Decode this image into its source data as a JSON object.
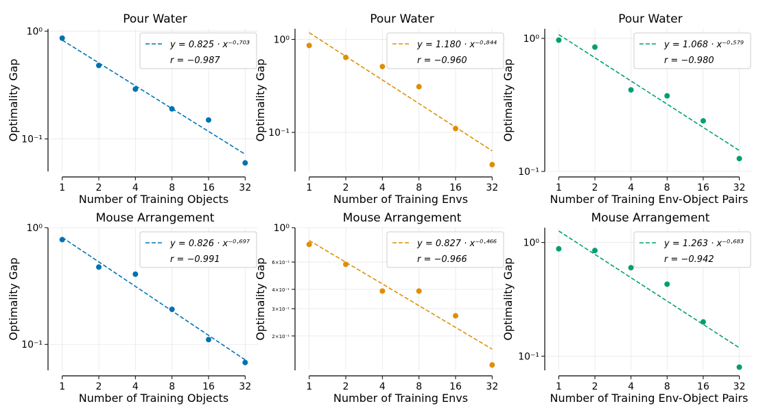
{
  "chart_data": [
    {
      "type": "scatter",
      "title": "Pour Water",
      "xlabel": "Number of Training Objects",
      "ylabel": "Optimality Gap",
      "x": [
        1,
        2,
        4,
        8,
        16,
        32
      ],
      "x_tick_labels": [
        "1",
        "2",
        "4",
        "8",
        "16",
        "32"
      ],
      "y": [
        0.86,
        0.48,
        0.29,
        0.19,
        0.15,
        0.06
      ],
      "y_scale": "log",
      "ylim": [
        0.05,
        1.05
      ],
      "y_ticks": [
        {
          "value": 1.0,
          "label": "10⁰"
        },
        {
          "value": 0.1,
          "label": "10⁻¹"
        }
      ],
      "fit": {
        "a": 0.825,
        "b": -0.703,
        "eq_label": "y = 0.825 · x⁻⁰·⁷⁰³",
        "r_label": "r = −0.987"
      },
      "color": "#0072b2",
      "legend": "top-right",
      "grid": true
    },
    {
      "type": "scatter",
      "title": "Pour Water",
      "xlabel": "Number of Training Envs",
      "ylabel": "Optimality Gap",
      "x": [
        1,
        2,
        4,
        8,
        16,
        32
      ],
      "x_tick_labels": [
        "1",
        "2",
        "4",
        "8",
        "16",
        "32"
      ],
      "y": [
        0.86,
        0.64,
        0.51,
        0.31,
        0.11,
        0.045
      ],
      "y_scale": "log",
      "ylim": [
        0.038,
        1.3
      ],
      "y_ticks": [
        {
          "value": 1.0,
          "label": "10⁰"
        },
        {
          "value": 0.1,
          "label": "10⁻¹"
        }
      ],
      "fit": {
        "a": 1.18,
        "b": -0.844,
        "eq_label": "y = 1.180 · x⁻⁰·⁸⁴⁴",
        "r_label": "r = −0.960"
      },
      "color": "#de8f05",
      "legend": "top-right",
      "grid": true
    },
    {
      "type": "scatter",
      "title": "Pour Water",
      "xlabel": "Number of Training Env-Object Pairs",
      "ylabel": "Optimality Gap",
      "x": [
        1,
        2,
        4,
        8,
        16,
        32
      ],
      "x_tick_labels": [
        "1",
        "2",
        "4",
        "8",
        "16",
        "32"
      ],
      "y": [
        0.97,
        0.86,
        0.41,
        0.37,
        0.24,
        0.125
      ],
      "y_scale": "log",
      "ylim": [
        0.1,
        1.18
      ],
      "y_ticks": [
        {
          "value": 1.0,
          "label": "10⁰"
        },
        {
          "value": 0.1,
          "label": "10⁻¹"
        }
      ],
      "fit": {
        "a": 1.068,
        "b": -0.579,
        "eq_label": "y = 1.068 · x⁻⁰·⁵⁷⁹",
        "r_label": "r = −0.980"
      },
      "color": "#029e73",
      "legend": "top-right",
      "grid": true
    },
    {
      "type": "scatter",
      "title": "Mouse Arrangement",
      "xlabel": "Number of Training Objects",
      "ylabel": "Optimality Gap",
      "x": [
        1,
        2,
        4,
        8,
        16,
        32
      ],
      "x_tick_labels": [
        "1",
        "2",
        "4",
        "8",
        "16",
        "32"
      ],
      "y": [
        0.79,
        0.46,
        0.4,
        0.2,
        0.11,
        0.07
      ],
      "y_scale": "log",
      "ylim": [
        0.06,
        1.0
      ],
      "y_ticks": [
        {
          "value": 1.0,
          "label": "10⁰"
        },
        {
          "value": 0.1,
          "label": "10⁻¹"
        }
      ],
      "fit": {
        "a": 0.826,
        "b": -0.697,
        "eq_label": "y = 0.826 · x⁻⁰·⁶⁹⁷",
        "r_label": "r = −0.991"
      },
      "color": "#0072b2",
      "legend": "top-right",
      "grid": true
    },
    {
      "type": "scatter",
      "title": "Mouse Arrangement",
      "xlabel": "Number of Training Envs",
      "ylabel": "Optimality Gap",
      "x": [
        1,
        2,
        4,
        8,
        16,
        32
      ],
      "x_tick_labels": [
        "1",
        "2",
        "4",
        "8",
        "16",
        "32"
      ],
      "y": [
        0.78,
        0.58,
        0.39,
        0.39,
        0.27,
        0.13
      ],
      "y_scale": "log",
      "ylim": [
        0.12,
        1.0
      ],
      "y_ticks": [
        {
          "value": 1.0,
          "label": "10⁰"
        },
        {
          "value": 0.6,
          "label": "6×10⁻¹"
        },
        {
          "value": 0.4,
          "label": "4×10⁻¹"
        },
        {
          "value": 0.3,
          "label": "3×10⁻¹"
        },
        {
          "value": 0.2,
          "label": "2×10⁻¹"
        }
      ],
      "fit": {
        "a": 0.827,
        "b": -0.466,
        "eq_label": "y = 0.827 · x⁻⁰·⁴⁶⁶",
        "r_label": "r = −0.966"
      },
      "color": "#de8f05",
      "legend": "top-right",
      "grid": true
    },
    {
      "type": "scatter",
      "title": "Mouse Arrangement",
      "xlabel": "Number of Training Env-Object Pairs",
      "ylabel": "Optimality Gap",
      "x": [
        1,
        2,
        4,
        8,
        16,
        32
      ],
      "x_tick_labels": [
        "1",
        "2",
        "4",
        "8",
        "16",
        "32"
      ],
      "y": [
        0.88,
        0.85,
        0.6,
        0.43,
        0.2,
        0.08
      ],
      "y_scale": "log",
      "ylim": [
        0.075,
        1.35
      ],
      "y_ticks": [
        {
          "value": 1.0,
          "label": "10⁰"
        },
        {
          "value": 0.1,
          "label": "10⁻¹"
        }
      ],
      "fit": {
        "a": 1.263,
        "b": -0.683,
        "eq_label": "y = 1.263 · x⁻⁰·⁶⁸³",
        "r_label": "r = −0.942"
      },
      "color": "#029e73",
      "legend": "top-right",
      "grid": true
    }
  ]
}
